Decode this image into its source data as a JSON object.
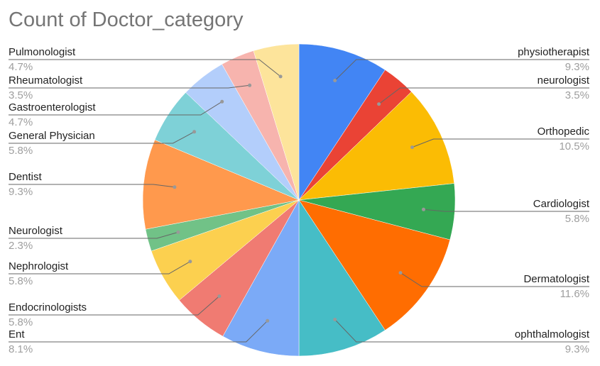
{
  "chart_data": {
    "type": "pie",
    "title": "Count of Doctor_category",
    "start_angle_deg": 0,
    "direction": "clockwise",
    "slices": [
      {
        "label": "physiotherapist",
        "percent": "9.3%",
        "value": 9.3,
        "color": "#4285F4",
        "side": "right"
      },
      {
        "label": "neurologist",
        "percent": "3.5%",
        "value": 3.5,
        "color": "#EA4335",
        "side": "right"
      },
      {
        "label": "Orthopedic",
        "percent": "10.5%",
        "value": 10.5,
        "color": "#FBBC04",
        "side": "right"
      },
      {
        "label": "Cardiologist",
        "percent": "5.8%",
        "value": 5.8,
        "color": "#34A853",
        "side": "right"
      },
      {
        "label": "Dermatologist",
        "percent": "11.6%",
        "value": 11.6,
        "color": "#FF6D01",
        "side": "right"
      },
      {
        "label": "ophthalmologist",
        "percent": "9.3%",
        "value": 9.3,
        "color": "#46BDC6",
        "side": "right"
      },
      {
        "label": "Ent",
        "percent": "8.1%",
        "value": 8.1,
        "color": "#7BAAF7",
        "side": "left"
      },
      {
        "label": "Endocrinologists",
        "percent": "5.8%",
        "value": 5.8,
        "color": "#F07B72",
        "side": "left"
      },
      {
        "label": "Nephrologist",
        "percent": "5.8%",
        "value": 5.8,
        "color": "#FCD04F",
        "side": "left"
      },
      {
        "label": "Neurologist",
        "percent": "2.3%",
        "value": 2.3,
        "color": "#71C287",
        "side": "left"
      },
      {
        "label": "Dentist",
        "percent": "9.3%",
        "value": 9.3,
        "color": "#FF994D",
        "side": "left"
      },
      {
        "label": "General Physician",
        "percent": "5.8%",
        "value": 5.8,
        "color": "#7ED1D7",
        "side": "left"
      },
      {
        "label": "Gastroenterologist",
        "percent": "4.7%",
        "value": 4.7,
        "color": "#B3CEFB",
        "side": "left"
      },
      {
        "label": "Rheumatologist",
        "percent": "3.5%",
        "value": 3.5,
        "color": "#F7B4AE",
        "side": "left"
      },
      {
        "label": "Pulmonologist",
        "percent": "4.7%",
        "value": 4.7,
        "color": "#FDE49B",
        "side": "left"
      }
    ]
  }
}
